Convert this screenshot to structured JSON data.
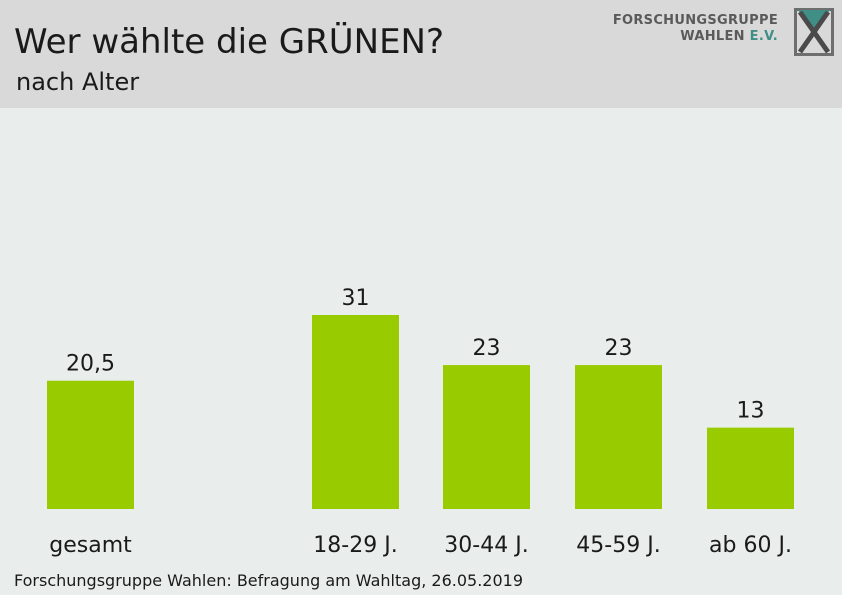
{
  "header": {
    "title": "Wer wählte die GRÜNEN?",
    "subtitle": "nach Alter",
    "logo_line1": "FORSCHUNGSGRUPPE",
    "logo_line2_a": "WAHLEN ",
    "logo_line2_b": "E.V."
  },
  "footer": {
    "source": "Forschungsgruppe Wahlen: Befragung am Wahltag, 26.05.2019"
  },
  "colors": {
    "bar": "#99cc00",
    "header_bg": "#d9d9d9",
    "plot_bg": "#e9eeec",
    "logo_accent": "#3f8f86"
  },
  "chart_data": {
    "type": "bar",
    "categories": [
      "gesamt",
      "18-29 J.",
      "30-44 J.",
      "45-59 J.",
      "ab 60 J."
    ],
    "values": [
      20.5,
      31,
      23,
      23,
      13
    ],
    "value_labels": [
      "20,5",
      "31",
      "23",
      "23",
      "13"
    ],
    "ylim": [
      0,
      31
    ],
    "grid": false,
    "legend": "none"
  }
}
